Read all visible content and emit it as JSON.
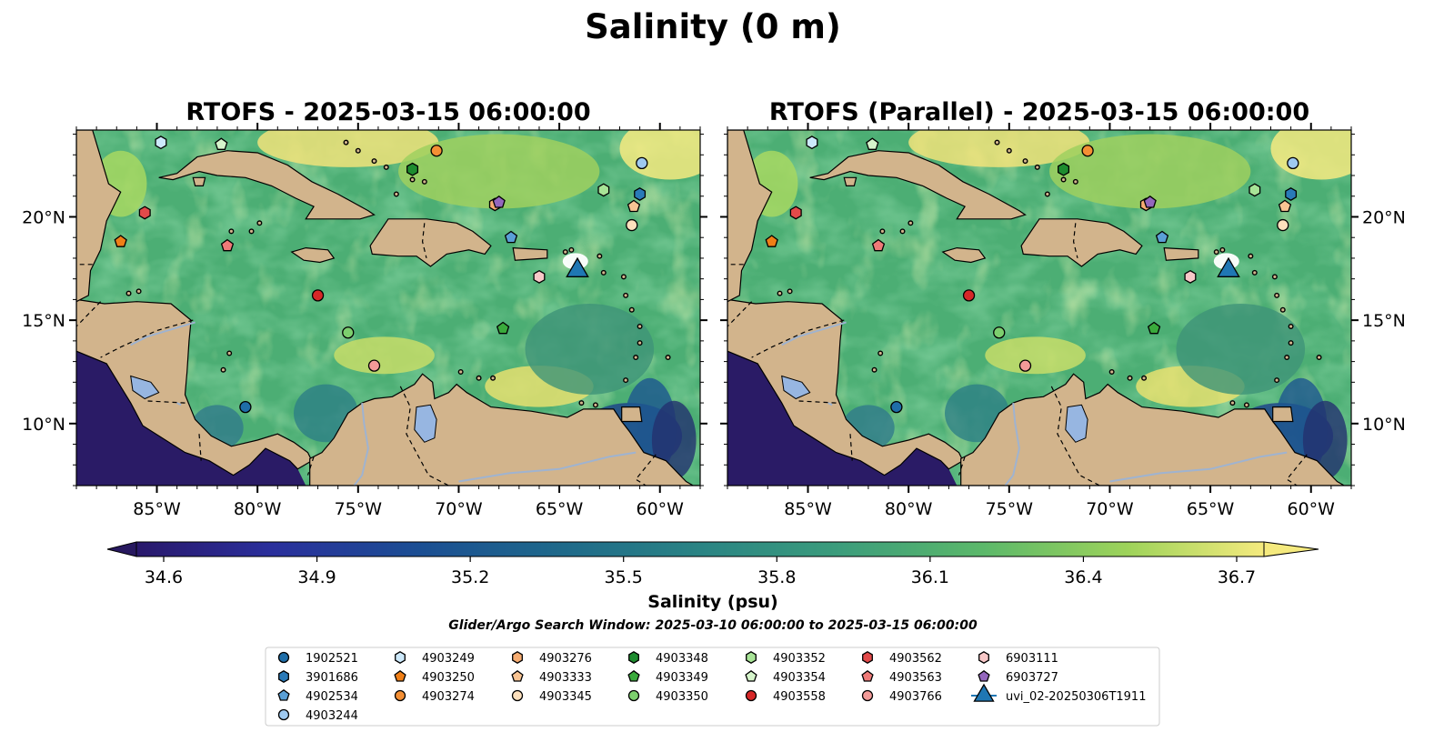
{
  "figure": {
    "title": "Salinity (0 m)",
    "search_window": "Glider/Argo Search Window: 2025-03-10 06:00:00 to 2025-03-15 06:00:00"
  },
  "panels": [
    {
      "title": "RTOFS - 2025-03-15 06:00:00"
    },
    {
      "title": "RTOFS (Parallel) - 2025-03-15 06:00:00"
    }
  ],
  "axes": {
    "x_ticks": [
      "85°W",
      "80°W",
      "75°W",
      "70°W",
      "65°W",
      "60°W"
    ],
    "y_ticks": [
      "20°N",
      "15°N",
      "10°N"
    ],
    "lon_range": [
      -89,
      -58
    ],
    "lat_range": [
      7,
      24.2
    ]
  },
  "colorbar": {
    "label": "Salinity (psu)",
    "ticks": [
      "34.6",
      "34.9",
      "35.2",
      "35.5",
      "35.8",
      "36.1",
      "36.4",
      "36.7"
    ],
    "range": [
      34.6,
      36.7
    ],
    "extend": "both",
    "colormap": "haline"
  },
  "legend": {
    "entries": [
      {
        "id": "1902521",
        "shape": "circle",
        "color": "#1f6ea8",
        "lon": -80.6,
        "lat": 10.8
      },
      {
        "id": "3901686",
        "shape": "hexagon",
        "color": "#2a7ab8",
        "lon": -61,
        "lat": 21.1
      },
      {
        "id": "4902534",
        "shape": "pentagon",
        "color": "#5a9fd6",
        "lon": -67.4,
        "lat": 19
      },
      {
        "id": "4903244",
        "shape": "circle",
        "color": "#9ec9f0",
        "lon": -60.9,
        "lat": 22.6
      },
      {
        "id": "4903249",
        "shape": "hexagon",
        "color": "#cde9fb",
        "lon": -84.8,
        "lat": 23.6
      },
      {
        "id": "4903250",
        "shape": "pentagon",
        "color": "#f07f17",
        "lon": -86.8,
        "lat": 18.8
      },
      {
        "id": "4903274",
        "shape": "circle",
        "color": "#f48f34",
        "lon": -71.1,
        "lat": 23.2
      },
      {
        "id": "4903276",
        "shape": "hexagon",
        "color": "#f7ad72",
        "lon": -68.2,
        "lat": 20.6
      },
      {
        "id": "4903333",
        "shape": "pentagon",
        "color": "#f9c493",
        "lon": -61.3,
        "lat": 20.5
      },
      {
        "id": "4903345",
        "shape": "circle",
        "color": "#fde0bd",
        "lon": -61.4,
        "lat": 19.6
      },
      {
        "id": "4903348",
        "shape": "hexagon",
        "color": "#1e8c2f",
        "lon": -72.3,
        "lat": 22.3
      },
      {
        "id": "4903349",
        "shape": "pentagon",
        "color": "#3aaa3c",
        "lon": -67.8,
        "lat": 14.6
      },
      {
        "id": "4903350",
        "shape": "circle",
        "color": "#7dcf6e",
        "lon": -75.5,
        "lat": 14.4
      },
      {
        "id": "4903352",
        "shape": "hexagon",
        "color": "#a8e497",
        "lon": -62.8,
        "lat": 21.3
      },
      {
        "id": "4903354",
        "shape": "pentagon",
        "color": "#d6f5cb",
        "lon": -81.8,
        "lat": 23.5
      },
      {
        "id": "4903558",
        "shape": "circle",
        "color": "#d62728",
        "lon": -77,
        "lat": 16.2
      },
      {
        "id": "4903562",
        "shape": "hexagon",
        "color": "#e24a4a",
        "lon": -85.6,
        "lat": 20.2
      },
      {
        "id": "4903563",
        "shape": "pentagon",
        "color": "#ef7a78",
        "lon": -81.5,
        "lat": 18.6
      },
      {
        "id": "4903766",
        "shape": "circle",
        "color": "#f29a98",
        "lon": -74.2,
        "lat": 12.8
      },
      {
        "id": "6903111",
        "shape": "hexagon",
        "color": "#f8c8c8",
        "lon": -66,
        "lat": 17.1
      },
      {
        "id": "6903727",
        "shape": "pentagon",
        "color": "#9467bd",
        "lon": -68,
        "lat": 20.7
      },
      {
        "id": "uvi_02-20250306T1911",
        "shape": "triangle",
        "color": "#1f77b4",
        "lon": -64.1,
        "lat": 17.4
      }
    ]
  }
}
